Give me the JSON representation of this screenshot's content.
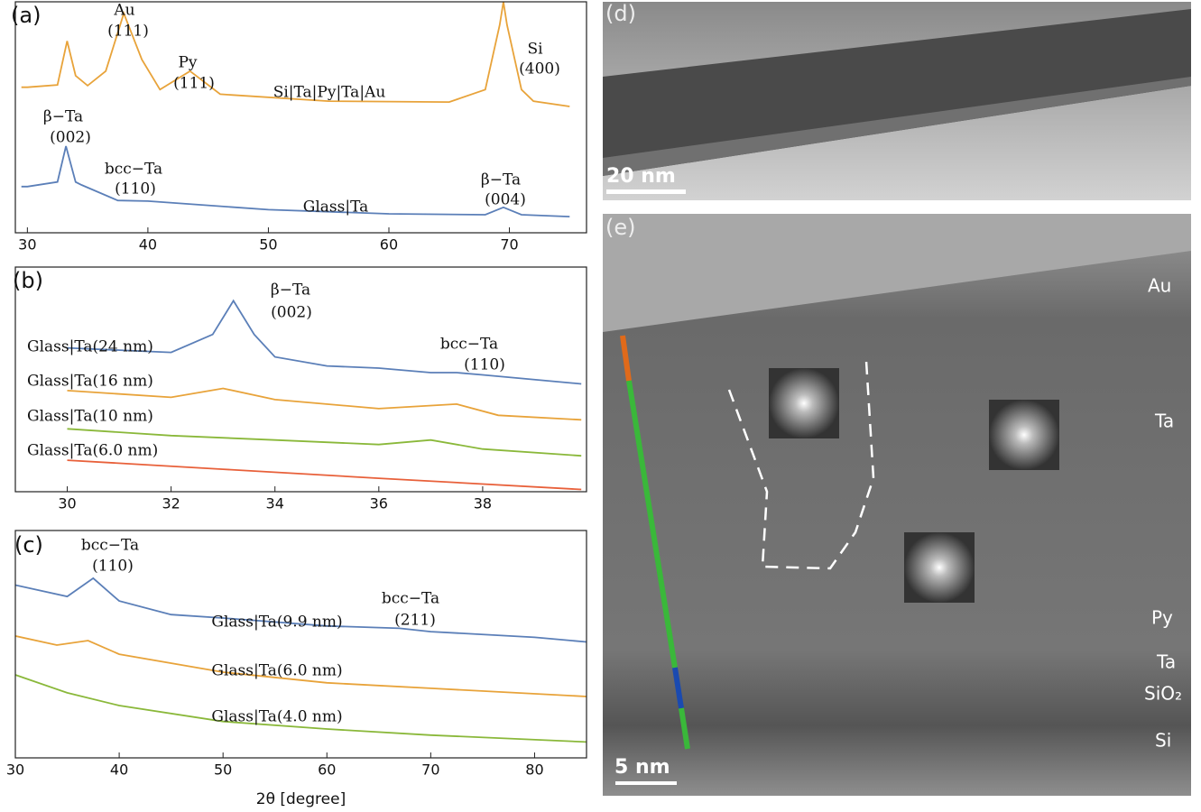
{
  "chart_data": [
    {
      "type": "line",
      "panel": "(a)",
      "xlim": [
        29,
        76.4
      ],
      "ylim": [
        0,
        100
      ],
      "xticks": [
        30,
        40,
        50,
        60,
        70
      ],
      "annotations": [
        "Au",
        "(111)",
        "Py",
        "(111)",
        "Si",
        "(400)",
        "β−Ta",
        "(002)",
        "bcc−Ta",
        "(110)",
        "β−Ta",
        "(004)"
      ],
      "series": [
        {
          "name": "Si|Ta|Py|Ta|Au",
          "color": "#e8a33a",
          "x": [
            29.5,
            30,
            32.5,
            33.3,
            34,
            35,
            36.5,
            38,
            39.5,
            41,
            43.5,
            46,
            55,
            65,
            68,
            69.2,
            69.5,
            69.8,
            71,
            72,
            75
          ],
          "values": [
            63,
            63,
            64,
            83,
            68,
            63.7,
            70,
            95,
            75,
            62,
            70,
            60,
            57,
            56.6,
            62,
            90,
            100,
            90,
            62,
            57,
            54.7
          ]
        },
        {
          "name": "Glass|Ta",
          "color": "#5b7fb8",
          "x": [
            29.5,
            30,
            32.5,
            33.2,
            34,
            34.5,
            37.5,
            40,
            50,
            60,
            68,
            69.5,
            71,
            75
          ],
          "values": [
            20,
            20,
            22,
            37.5,
            22,
            20.7,
            14,
            13.7,
            10,
            8.2,
            7.8,
            11,
            7.8,
            7
          ]
        }
      ]
    },
    {
      "type": "line",
      "panel": "(b)",
      "xlim": [
        29,
        40
      ],
      "ylim": [
        0,
        100
      ],
      "xticks": [
        30,
        32,
        34,
        36,
        38
      ],
      "annotations": [
        "β−Ta",
        "(002)",
        "bcc−Ta",
        "(110)"
      ],
      "series": [
        {
          "name": "Glass|Ta(24 nm)",
          "color": "#5b7fb8",
          "x": [
            30,
            32,
            32.8,
            33.2,
            33.6,
            34,
            35,
            36,
            37,
            37.5,
            38,
            39.9
          ],
          "values": [
            64,
            62,
            70,
            85,
            70,
            60,
            56,
            55,
            53,
            53,
            52,
            48
          ]
        },
        {
          "name": "Glass|Ta(16 nm)",
          "color": "#e8a33a",
          "x": [
            30,
            32,
            33,
            34,
            36,
            37.5,
            38.3,
            39.9
          ],
          "values": [
            45,
            42,
            46,
            41,
            37,
            39,
            34,
            32
          ]
        },
        {
          "name": "Glass|Ta(10 nm)",
          "color": "#8ab83a",
          "x": [
            30,
            32,
            34,
            36,
            37,
            38,
            39.9
          ],
          "values": [
            28,
            25,
            23,
            21,
            23,
            19,
            16
          ]
        },
        {
          "name": "Glass|Ta(6.0 nm)",
          "color": "#e8603a",
          "x": [
            30,
            33,
            36,
            39.9
          ],
          "values": [
            14,
            10,
            6,
            1
          ]
        }
      ]
    },
    {
      "type": "line",
      "panel": "(c)",
      "xlim": [
        30,
        85
      ],
      "ylim": [
        0,
        100
      ],
      "xticks": [
        30,
        40,
        50,
        60,
        70,
        80
      ],
      "xlabel": "2θ [degree]",
      "annotations": [
        "bcc−Ta",
        "(110)",
        "bcc−Ta",
        "(211)"
      ],
      "series": [
        {
          "name": "Glass|Ta(9.9 nm)",
          "color": "#5b7fb8",
          "x": [
            30,
            35,
            37.5,
            40,
            45,
            50,
            60,
            67,
            70,
            80,
            85
          ],
          "values": [
            76,
            71,
            79,
            69,
            63,
            61.5,
            58,
            57,
            55.5,
            53,
            51
          ]
        },
        {
          "name": "Glass|Ta(6.0 nm)",
          "color": "#e8a33a",
          "x": [
            30,
            34,
            37,
            40,
            50,
            60,
            70,
            85
          ],
          "values": [
            53.6,
            49.6,
            51.6,
            45.6,
            37.7,
            33,
            30.6,
            27
          ]
        },
        {
          "name": "Glass|Ta(4.0 nm)",
          "color": "#8ab83a",
          "x": [
            30,
            35,
            40,
            50,
            60,
            70,
            85
          ],
          "values": [
            36.5,
            28.6,
            23,
            16,
            12.7,
            10,
            7
          ]
        }
      ]
    }
  ],
  "images": {
    "d": {
      "label": "(d)",
      "scale": "20 nm"
    },
    "e": {
      "label": "(e)",
      "scale": "5 nm",
      "layers": [
        "Au",
        "Ta",
        "Py",
        "Ta",
        "SiO₂",
        "Si"
      ]
    }
  }
}
